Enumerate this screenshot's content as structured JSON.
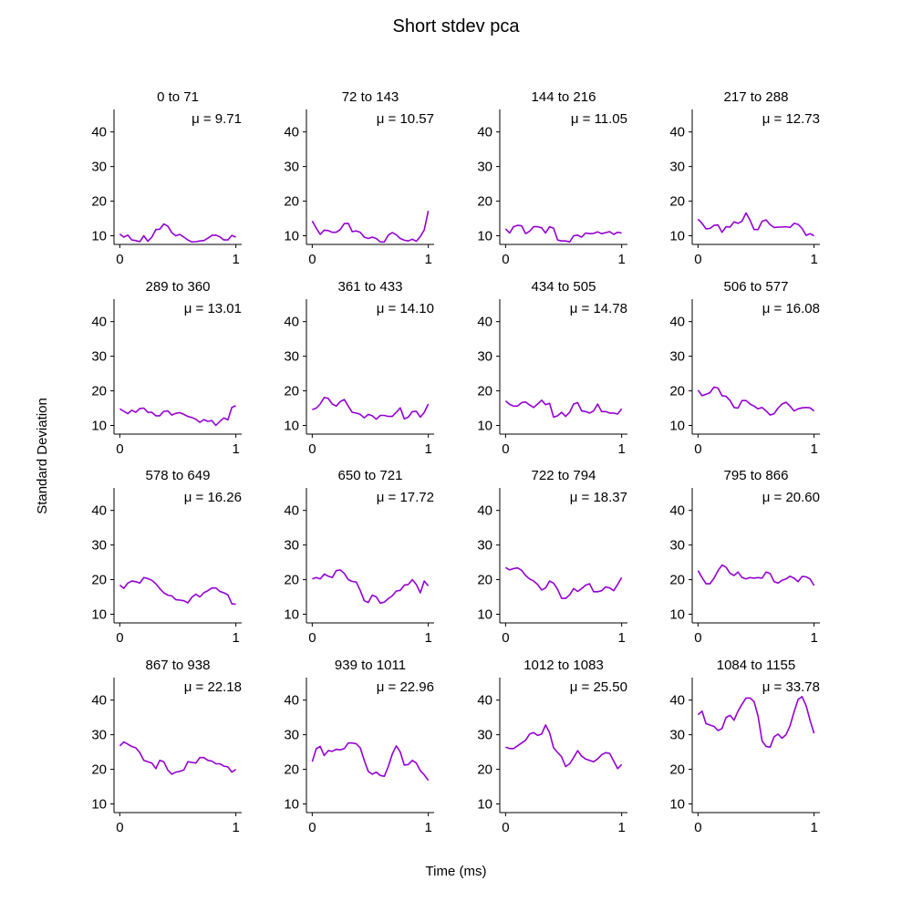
{
  "chart_data": {
    "type": "line",
    "title": "Short stdev pca",
    "xlabel": "Time (ms)",
    "ylabel": "Standard Deviation",
    "ylim": [
      7.5,
      46.5
    ],
    "xlim": [
      -0.05,
      1.05
    ],
    "y_ticks": [
      10,
      20,
      30,
      40
    ],
    "x_ticks": [
      0,
      1
    ],
    "line_color": "#9400d3",
    "mean_prefix": "μ = ",
    "x": [
      0.0,
      0.0345,
      0.069,
      0.1034,
      0.1379,
      0.1724,
      0.2069,
      0.2414,
      0.2759,
      0.3103,
      0.3448,
      0.3793,
      0.4138,
      0.4483,
      0.4828,
      0.5172,
      0.5517,
      0.5862,
      0.6207,
      0.6552,
      0.6897,
      0.7241,
      0.7586,
      0.7931,
      0.8276,
      0.8621,
      0.8966,
      0.931,
      0.9655,
      1.0
    ],
    "panels": [
      {
        "title": "0 to 71",
        "mean": "9.71",
        "values": [
          10.5,
          9.6,
          10.2,
          8.8,
          8.6,
          8.3,
          10.0,
          8.4,
          9.6,
          11.8,
          11.9,
          13.4,
          12.8,
          10.9,
          10.0,
          10.4,
          9.6,
          8.8,
          8.2,
          8.3,
          8.5,
          8.6,
          9.3,
          10.1,
          10.2,
          9.7,
          8.8,
          8.8,
          10.1,
          9.6
        ]
      },
      {
        "title": "72 to 143",
        "mean": "10.57",
        "values": [
          14.3,
          12.2,
          10.4,
          11.6,
          11.5,
          11.0,
          11.0,
          11.8,
          13.5,
          13.6,
          11.2,
          11.4,
          11.0,
          9.6,
          9.2,
          9.6,
          9.2,
          8.2,
          8.2,
          10.2,
          10.9,
          10.3,
          9.2,
          8.7,
          8.5,
          9.0,
          8.4,
          9.8,
          11.7,
          17.2
        ]
      },
      {
        "title": "144 to 216",
        "mean": "11.05",
        "values": [
          12.0,
          10.8,
          12.6,
          13.0,
          12.9,
          10.6,
          11.3,
          12.6,
          12.6,
          12.3,
          10.8,
          12.6,
          12.2,
          8.8,
          8.5,
          8.5,
          8.2,
          10.0,
          10.2,
          9.6,
          10.8,
          10.6,
          10.7,
          11.1,
          10.6,
          10.9,
          11.2,
          10.4,
          11.0,
          10.8
        ]
      },
      {
        "title": "217 to 288",
        "mean": "12.73",
        "values": [
          14.8,
          13.6,
          12.0,
          12.1,
          13.0,
          13.1,
          11.0,
          12.6,
          12.5,
          14.0,
          13.6,
          14.2,
          16.6,
          14.5,
          11.8,
          11.8,
          14.2,
          14.6,
          13.2,
          12.4,
          12.5,
          12.5,
          12.6,
          12.4,
          13.6,
          13.3,
          12.1,
          10.1,
          10.6,
          10.0
        ]
      },
      {
        "title": "289 to 360",
        "mean": "13.01",
        "values": [
          14.8,
          14.1,
          13.4,
          14.4,
          13.8,
          14.9,
          15.0,
          13.8,
          13.8,
          12.8,
          12.8,
          14.1,
          14.2,
          13.0,
          13.5,
          13.7,
          13.2,
          12.6,
          12.3,
          11.8,
          10.9,
          11.7,
          11.2,
          11.4,
          10.0,
          11.2,
          12.2,
          11.6,
          15.2,
          15.7
        ]
      },
      {
        "title": "361 to 433",
        "mean": "14.10",
        "values": [
          14.6,
          15.0,
          16.2,
          18.1,
          17.8,
          16.2,
          15.6,
          16.9,
          17.5,
          15.6,
          13.8,
          13.6,
          13.2,
          12.2,
          13.2,
          12.8,
          11.8,
          12.9,
          12.9,
          12.6,
          12.6,
          13.8,
          15.1,
          11.9,
          12.4,
          14.0,
          14.1,
          12.4,
          13.8,
          16.2
        ]
      },
      {
        "title": "434 to 505",
        "mean": "14.78",
        "values": [
          17.1,
          16.1,
          15.6,
          15.6,
          16.6,
          16.8,
          15.9,
          15.2,
          16.2,
          17.3,
          16.0,
          16.4,
          12.4,
          12.8,
          13.8,
          12.6,
          13.8,
          16.2,
          16.6,
          14.2,
          14.0,
          13.6,
          14.2,
          16.2,
          14.0,
          14.0,
          13.6,
          13.6,
          13.3,
          14.8
        ]
      },
      {
        "title": "506 to 577",
        "mean": "16.08",
        "values": [
          20.2,
          18.6,
          19.0,
          19.5,
          21.1,
          20.8,
          18.6,
          18.4,
          17.2,
          15.2,
          15.0,
          17.2,
          17.2,
          16.2,
          15.6,
          14.8,
          15.2,
          14.2,
          13.0,
          13.4,
          15.0,
          16.2,
          16.7,
          15.6,
          14.2,
          14.8,
          15.1,
          15.2,
          15.1,
          14.2
        ]
      },
      {
        "title": "578 to 649",
        "mean": "16.26",
        "values": [
          18.4,
          17.5,
          19.0,
          19.6,
          19.4,
          19.0,
          20.6,
          20.3,
          19.8,
          18.8,
          17.4,
          16.2,
          15.5,
          15.3,
          14.2,
          14.1,
          13.9,
          13.3,
          14.9,
          15.8,
          15.0,
          16.2,
          16.8,
          17.6,
          17.6,
          16.6,
          16.2,
          15.6,
          13.0,
          12.9
        ]
      },
      {
        "title": "650 to 721",
        "mean": "17.72",
        "values": [
          20.2,
          20.6,
          20.2,
          21.6,
          21.0,
          20.6,
          22.6,
          22.8,
          21.8,
          20.0,
          19.5,
          19.3,
          16.9,
          13.9,
          13.4,
          15.5,
          15.0,
          13.2,
          13.5,
          14.5,
          15.3,
          16.7,
          16.9,
          18.4,
          18.6,
          20.0,
          18.6,
          16.2,
          19.6,
          18.2
        ]
      },
      {
        "title": "722 to 794",
        "mean": "18.37",
        "values": [
          23.5,
          22.8,
          23.2,
          23.4,
          22.7,
          21.2,
          20.2,
          19.6,
          18.6,
          17.0,
          17.6,
          19.6,
          19.0,
          17.2,
          14.6,
          14.6,
          15.6,
          17.4,
          16.6,
          17.4,
          18.4,
          18.8,
          16.5,
          16.5,
          16.8,
          17.9,
          17.6,
          16.8,
          18.6,
          20.6
        ]
      },
      {
        "title": "795 to 866",
        "mean": "20.60",
        "values": [
          22.6,
          20.6,
          18.8,
          18.8,
          20.4,
          22.6,
          24.2,
          23.6,
          21.8,
          21.2,
          22.2,
          20.6,
          20.2,
          20.6,
          20.4,
          20.6,
          20.4,
          22.2,
          21.8,
          19.4,
          19.0,
          19.8,
          20.2,
          21.0,
          20.4,
          19.4,
          20.9,
          20.8,
          20.2,
          18.3
        ]
      },
      {
        "title": "867 to 938",
        "mean": "22.18",
        "values": [
          26.8,
          27.9,
          27.3,
          26.6,
          26.2,
          24.8,
          22.6,
          22.2,
          21.8,
          20.2,
          22.6,
          22.2,
          19.8,
          18.6,
          19.2,
          19.4,
          19.8,
          22.2,
          22.0,
          21.8,
          23.4,
          23.4,
          22.6,
          22.4,
          21.6,
          21.6,
          20.9,
          20.7,
          19.2,
          20.0
        ]
      },
      {
        "title": "939 to 1011",
        "mean": "22.96",
        "values": [
          22.2,
          26.0,
          26.6,
          24.0,
          25.4,
          25.2,
          25.8,
          25.6,
          26.0,
          27.6,
          27.6,
          27.4,
          26.2,
          22.6,
          19.4,
          18.6,
          19.2,
          18.2,
          18.0,
          20.8,
          24.4,
          26.8,
          25.0,
          21.2,
          21.4,
          22.6,
          21.8,
          19.6,
          18.4,
          16.8
        ]
      },
      {
        "title": "1012 to 1083",
        "mean": "25.50",
        "values": [
          26.4,
          26.0,
          26.0,
          26.8,
          27.6,
          28.4,
          30.2,
          30.6,
          29.8,
          30.2,
          32.8,
          30.6,
          26.2,
          24.9,
          23.6,
          20.8,
          21.6,
          23.4,
          25.4,
          23.8,
          23.0,
          22.6,
          22.2,
          23.0,
          24.2,
          24.8,
          24.6,
          22.4,
          20.2,
          21.4
        ]
      },
      {
        "title": "1084 to 1155",
        "mean": "33.78",
        "values": [
          35.8,
          36.8,
          33.2,
          32.8,
          32.4,
          31.2,
          31.8,
          35.0,
          35.6,
          34.2,
          36.8,
          38.8,
          40.6,
          40.6,
          39.6,
          35.4,
          28.2,
          26.6,
          26.4,
          29.4,
          30.2,
          29.0,
          30.0,
          32.6,
          36.6,
          40.2,
          41.0,
          38.4,
          34.2,
          30.4
        ]
      }
    ]
  }
}
